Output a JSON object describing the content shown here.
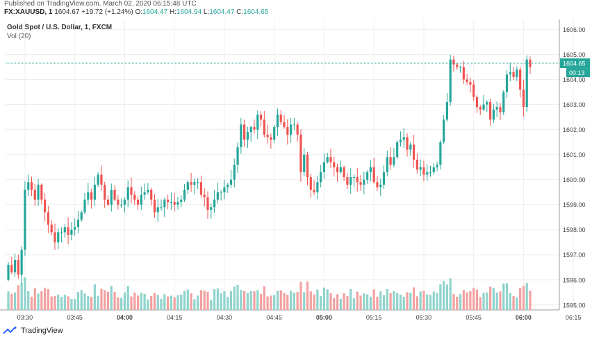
{
  "header": {
    "published": "Published on TradingView.com, March 02, 2020 06:15:48 UTC",
    "symbol": "FX:XAUUSD, 1",
    "last": "1604.67",
    "change": "+19.72 (+1.24%)",
    "o_label": "O:",
    "o": "1604.47",
    "h_label": "H:",
    "h": "1604.94",
    "l_label": "L:",
    "l": "1604.47",
    "c_label": "C:",
    "c": "1604.65"
  },
  "legend": {
    "title": "Gold Spot / U.S. Dollar, 1, FXCM",
    "volume": "Vol (20)"
  },
  "footer": {
    "brand": "TradingView"
  },
  "colors": {
    "up": "#26a69a",
    "down": "#ef5350",
    "vol_up": "#8fd4cc",
    "vol_down": "#f3a0a0",
    "grid": "#eeeeee",
    "price_line": "#26a69a",
    "price_tag": "#26a69a"
  },
  "chart_data": {
    "type": "candlestick",
    "title": "Gold Spot / U.S. Dollar, 1, FXCM",
    "ylim": [
      1594.8,
      1606.4
    ],
    "y_ticks": [
      "1606.00",
      "1605.00",
      "1604.00",
      "1603.00",
      "1602.00",
      "1601.00",
      "1600.00",
      "1599.00",
      "1598.00",
      "1597.00",
      "1596.00",
      "1595.00"
    ],
    "x_ticks": [
      {
        "label": "03:30",
        "index": 5,
        "bold": false
      },
      {
        "label": "03:45",
        "index": 20,
        "bold": false
      },
      {
        "label": "04:00",
        "index": 35,
        "bold": true
      },
      {
        "label": "04:15",
        "index": 50,
        "bold": false
      },
      {
        "label": "04:30",
        "index": 65,
        "bold": false
      },
      {
        "label": "04:45",
        "index": 80,
        "bold": false
      },
      {
        "label": "05:00",
        "index": 95,
        "bold": true
      },
      {
        "label": "05:15",
        "index": 110,
        "bold": false
      },
      {
        "label": "05:30",
        "index": 125,
        "bold": false
      },
      {
        "label": "05:45",
        "index": 140,
        "bold": false
      },
      {
        "label": "06:00",
        "index": 155,
        "bold": true
      },
      {
        "label": "06:15",
        "index": 170,
        "bold": false
      }
    ],
    "last_price": "1604.65",
    "countdown": "00:13",
    "close": [
      1596.6,
      1596.3,
      1596.8,
      1596.2,
      1597.2,
      1599.6,
      1599.9,
      1599.6,
      1599.2,
      1599.8,
      1599.2,
      1598.7,
      1598.2,
      1597.9,
      1597.5,
      1597.9,
      1597.9,
      1598.1,
      1597.8,
      1598.0,
      1598.1,
      1598.4,
      1598.7,
      1599.2,
      1599.5,
      1599.2,
      1599.8,
      1600.2,
      1599.8,
      1599.2,
      1599.0,
      1599.6,
      1599.2,
      1599.0,
      1599.0,
      1599.2,
      1599.7,
      1599.4,
      1599.2,
      1599.0,
      1599.4,
      1599.5,
      1599.6,
      1599.2,
      1598.7,
      1598.9,
      1598.9,
      1599.2,
      1599.1,
      1599.1,
      1599.0,
      1599.1,
      1599.2,
      1599.6,
      1599.9,
      1599.8,
      1599.9,
      1599.9,
      1599.4,
      1599.3,
      1598.8,
      1598.9,
      1599.2,
      1599.5,
      1599.5,
      1599.7,
      1599.8,
      1600.0,
      1600.6,
      1601.3,
      1602.2,
      1601.6,
      1601.9,
      1602.1,
      1602.0,
      1602.6,
      1602.4,
      1601.8,
      1601.7,
      1601.6,
      1602.1,
      1602.6,
      1602.3,
      1602.1,
      1601.8,
      1602.2,
      1602.2,
      1601.8,
      1600.3,
      1601.0,
      1600.1,
      1599.6,
      1599.5,
      1599.9,
      1600.3,
      1600.7,
      1600.9,
      1600.7,
      1600.5,
      1600.3,
      1600.5,
      1600.1,
      1599.8,
      1600.1,
      1600.1,
      1599.9,
      1599.8,
      1600.0,
      1600.3,
      1600.5,
      1599.9,
      1599.7,
      1599.8,
      1600.3,
      1600.9,
      1600.6,
      1600.9,
      1601.5,
      1601.6,
      1601.7,
      1601.2,
      1601.4,
      1600.8,
      1600.4,
      1600.5,
      1600.2,
      1600.3,
      1600.3,
      1600.5,
      1600.6,
      1601.5,
      1602.4,
      1603.1,
      1604.8,
      1604.6,
      1604.5,
      1604.5,
      1604.0,
      1603.9,
      1603.8,
      1603.3,
      1602.9,
      1602.8,
      1603.0,
      1603.1,
      1602.4,
      1602.8,
      1602.9,
      1602.7,
      1603.5,
      1604.2,
      1604.3,
      1604.1,
      1604.4,
      1603.6,
      1602.9,
      1604.8,
      1604.5
    ]
  }
}
